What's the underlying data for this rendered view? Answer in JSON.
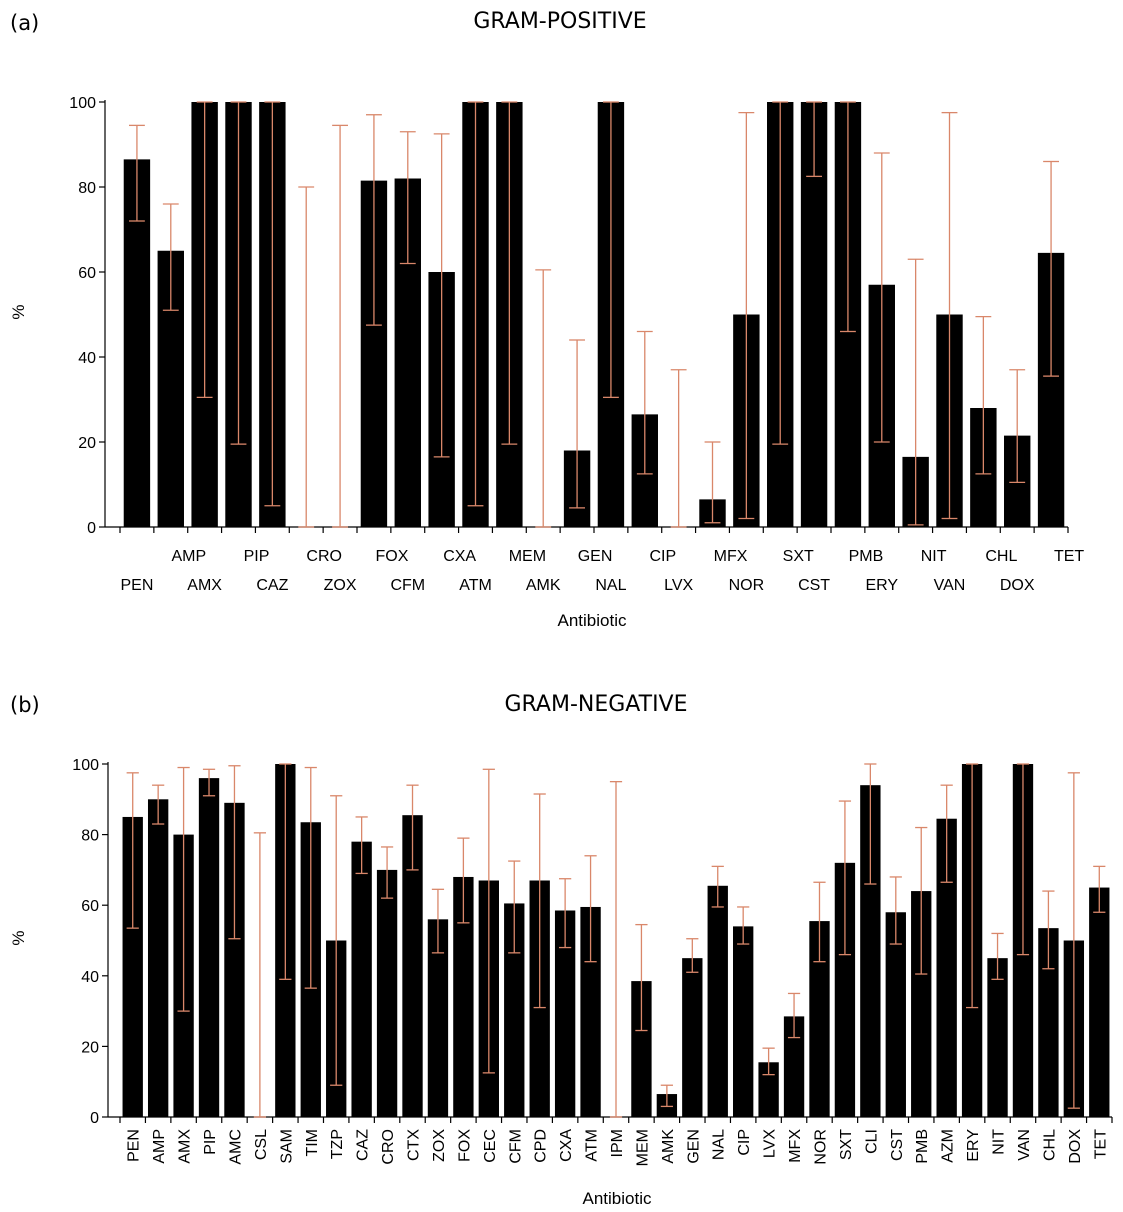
{
  "chart_data": [
    {
      "type": "bar",
      "panel": "(a)",
      "title": "GRAM-POSITIVE",
      "xlabel": "Antibiotic",
      "ylabel": "%",
      "ylim": [
        0,
        100
      ],
      "yticks": [
        0,
        20,
        40,
        60,
        80,
        100
      ],
      "categories": [
        "PEN",
        "AMP",
        "AMX",
        "PIP",
        "CAZ",
        "CRO",
        "ZOX",
        "FOX",
        "CFM",
        "CXA",
        "ATM",
        "MEM",
        "AMK",
        "GEN",
        "NAL",
        "CIP",
        "LVX",
        "MFX",
        "NOR",
        "SXT",
        "CST",
        "PMB",
        "ERY",
        "NIT",
        "VAN",
        "CHL",
        "DOX",
        "TET"
      ],
      "values": [
        86.5,
        65,
        100,
        100,
        100,
        0,
        0,
        81.5,
        82,
        60,
        100,
        100,
        0,
        18,
        100,
        26.5,
        0,
        6.5,
        50,
        100,
        100,
        100,
        57,
        16.5,
        50,
        28,
        21.5,
        64.5
      ],
      "error_low": [
        72,
        51,
        30.5,
        19.5,
        5,
        0,
        0,
        47.5,
        62,
        16.5,
        5,
        19.5,
        0,
        4.5,
        30.5,
        12.5,
        0,
        1,
        2,
        19.5,
        82.5,
        46,
        20,
        0.5,
        2,
        12.5,
        10.5,
        35.5
      ],
      "error_high": [
        94.5,
        76,
        100,
        100,
        100,
        80,
        94.5,
        97,
        93,
        92.5,
        100,
        100,
        60.5,
        44,
        100,
        46,
        37,
        20,
        97.5,
        100,
        100,
        100,
        88,
        63,
        97.5,
        49.5,
        37,
        86
      ],
      "grid": false
    },
    {
      "type": "bar",
      "panel": "(b)",
      "title": "GRAM-NEGATIVE",
      "xlabel": "Antibiotic",
      "ylabel": "%",
      "ylim": [
        0,
        100
      ],
      "yticks": [
        0,
        20,
        40,
        60,
        80,
        100
      ],
      "categories": [
        "PEN",
        "AMP",
        "AMX",
        "PIP",
        "AMC",
        "CSL",
        "SAM",
        "TIM",
        "TZP",
        "CAZ",
        "CRO",
        "CTX",
        "ZOX",
        "FOX",
        "CEC",
        "CFM",
        "CPD",
        "CXA",
        "ATM",
        "IPM",
        "MEM",
        "AMK",
        "GEN",
        "NAL",
        "CIP",
        "LVX",
        "MFX",
        "NOR",
        "SXT",
        "CLI",
        "CST",
        "PMB",
        "AZM",
        "ERY",
        "NIT",
        "VAN",
        "CHL",
        "DOX",
        "TET"
      ],
      "values": [
        85,
        90,
        80,
        96,
        89,
        0,
        100,
        83.5,
        50,
        78,
        70,
        85.5,
        56,
        68,
        67,
        60.5,
        67,
        58.5,
        59.5,
        0,
        38.5,
        6.5,
        45,
        65.5,
        54,
        15.5,
        28.5,
        55.5,
        72,
        94,
        58,
        64,
        84.5,
        100,
        45,
        100,
        53.5,
        50,
        65
      ],
      "error_low": [
        53.5,
        83,
        30,
        91,
        50.5,
        0,
        39,
        36.5,
        9,
        69,
        62,
        70,
        46.5,
        55,
        12.5,
        46.5,
        31,
        48,
        44,
        0,
        24.5,
        3,
        41,
        59.5,
        49,
        12,
        22.5,
        44,
        46,
        66,
        49,
        40.5,
        66.5,
        31,
        39,
        46,
        42,
        2.5,
        58
      ],
      "error_high": [
        97.5,
        94,
        99,
        98.5,
        99.5,
        80.5,
        100,
        99,
        91,
        85,
        76.5,
        94,
        64.5,
        79,
        98.5,
        72.5,
        91.5,
        67.5,
        74,
        95,
        54.5,
        9,
        50.5,
        71,
        59.5,
        19.5,
        35,
        66.5,
        89.5,
        100,
        68,
        82,
        94,
        100,
        52,
        100,
        64,
        97.5,
        71
      ],
      "grid": false
    }
  ]
}
